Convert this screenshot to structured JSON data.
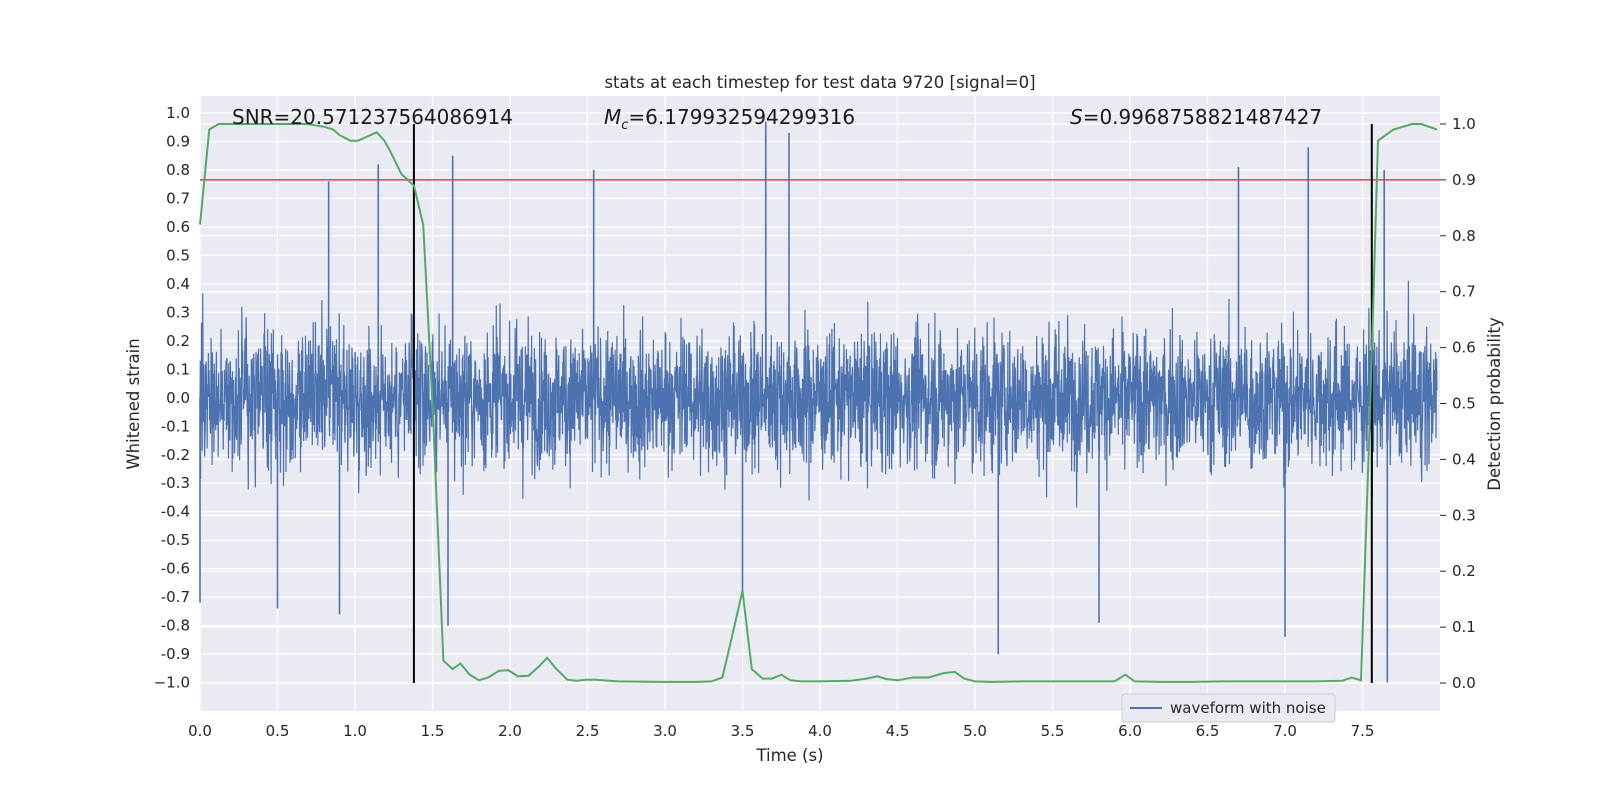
{
  "chart_data": {
    "type": "line",
    "title": "stats at each timestep for test data 9720 [signal=0]",
    "xlabel": "Time (s)",
    "ylabel_left": "Whitened strain",
    "ylabel_right": "Detection probability",
    "xlim": [
      0.0,
      8.0
    ],
    "ylim_left": [
      -1.1,
      1.06
    ],
    "ylim_right": [
      -0.05,
      1.05
    ],
    "x_ticks": [
      "0.0",
      "0.5",
      "1.0",
      "1.5",
      "2.0",
      "2.5",
      "3.0",
      "3.5",
      "4.0",
      "4.5",
      "5.0",
      "5.5",
      "6.0",
      "6.5",
      "7.0",
      "7.5"
    ],
    "y_left_ticks": [
      "1.0",
      "0.9",
      "0.8",
      "0.7",
      "0.6",
      "0.5",
      "0.4",
      "0.3",
      "0.2",
      "0.1",
      "0.0",
      "-0.1",
      "-0.2",
      "-0.3",
      "-0.4",
      "-0.5",
      "-0.6",
      "-0.7",
      "-0.8",
      "-0.9",
      "−1.0"
    ],
    "y_right_ticks": [
      "1.0",
      "0.9",
      "0.8",
      "0.7",
      "0.6",
      "0.5",
      "0.4",
      "0.3",
      "0.2",
      "0.1",
      "0.0"
    ],
    "grid": true,
    "legend_placement": "lower-right",
    "annotations": {
      "snr": "SNR=20.571237564086914",
      "mc_prefix": "M",
      "mc_sub": "c",
      "mc_value": "=6.179932594299316",
      "s_prefix": "S",
      "s_value": "=0.9968758821487427"
    },
    "series": [
      {
        "name": "waveform with noise",
        "axis": "left",
        "color": "#4c72b0",
        "description_envelope": {
          "typical_peak_upper": [
            0.35,
            0.65
          ],
          "typical_peak_lower": [
            -0.35,
            -0.65
          ],
          "notable_spikes": [
            {
              "x": 0.83,
              "y": 0.76
            },
            {
              "x": 1.15,
              "y": 0.82
            },
            {
              "x": 1.63,
              "y": 0.85
            },
            {
              "x": 2.54,
              "y": 0.8
            },
            {
              "x": 3.65,
              "y": 0.97
            },
            {
              "x": 3.8,
              "y": 0.93
            },
            {
              "x": 6.7,
              "y": 0.81
            },
            {
              "x": 7.15,
              "y": 0.88
            },
            {
              "x": 7.64,
              "y": 0.8
            },
            {
              "x": 0.0,
              "y": -0.72
            },
            {
              "x": 0.5,
              "y": -0.74
            },
            {
              "x": 0.9,
              "y": -0.76
            },
            {
              "x": 1.6,
              "y": -0.8
            },
            {
              "x": 3.5,
              "y": -0.7
            },
            {
              "x": 5.15,
              "y": -0.9
            },
            {
              "x": 5.8,
              "y": -0.79
            },
            {
              "x": 7.0,
              "y": -0.84
            },
            {
              "x": 7.66,
              "y": -1.0
            }
          ]
        }
      },
      {
        "name": "detection probability",
        "axis": "right",
        "color": "#55a868",
        "x": [
          0.0,
          0.06,
          0.12,
          0.2,
          0.3,
          0.4,
          0.5,
          0.6,
          0.7,
          0.8,
          0.86,
          0.9,
          0.97,
          1.02,
          1.06,
          1.1,
          1.14,
          1.19,
          1.23,
          1.3,
          1.38,
          1.44,
          1.5,
          1.57,
          1.63,
          1.68,
          1.74,
          1.8,
          1.86,
          1.93,
          1.99,
          2.05,
          2.12,
          2.18,
          2.24,
          2.3,
          2.37,
          2.43,
          2.49,
          2.55,
          2.7,
          3.0,
          3.2,
          3.3,
          3.37,
          3.43,
          3.5,
          3.56,
          3.63,
          3.69,
          3.75,
          3.81,
          3.88,
          4.0,
          4.2,
          4.3,
          4.37,
          4.43,
          4.5,
          4.6,
          4.7,
          4.8,
          4.87,
          4.93,
          5.0,
          5.1,
          5.3,
          5.6,
          5.9,
          5.97,
          6.03,
          6.2,
          6.4,
          6.6,
          6.8,
          7.0,
          7.2,
          7.37,
          7.43,
          7.49,
          7.55,
          7.6,
          7.65,
          7.7,
          7.76,
          7.82,
          7.88,
          7.93,
          7.98
        ],
        "values": [
          0.82,
          0.99,
          1.0,
          1.0,
          1.0,
          1.0,
          1.0,
          1.0,
          1.0,
          0.995,
          0.99,
          0.98,
          0.97,
          0.97,
          0.975,
          0.98,
          0.985,
          0.97,
          0.95,
          0.91,
          0.89,
          0.82,
          0.5,
          0.04,
          0.025,
          0.035,
          0.015,
          0.005,
          0.01,
          0.022,
          0.023,
          0.012,
          0.013,
          0.028,
          0.045,
          0.025,
          0.006,
          0.004,
          0.006,
          0.006,
          0.003,
          0.002,
          0.002,
          0.003,
          0.01,
          0.08,
          0.165,
          0.025,
          0.008,
          0.008,
          0.015,
          0.005,
          0.003,
          0.003,
          0.004,
          0.008,
          0.012,
          0.007,
          0.005,
          0.01,
          0.01,
          0.018,
          0.02,
          0.008,
          0.003,
          0.002,
          0.003,
          0.003,
          0.003,
          0.015,
          0.003,
          0.002,
          0.002,
          0.003,
          0.003,
          0.003,
          0.003,
          0.004,
          0.01,
          0.005,
          0.5,
          0.97,
          0.98,
          0.99,
          0.995,
          1.0,
          1.0,
          0.995,
          0.99
        ]
      }
    ],
    "threshold_line": {
      "axis": "right",
      "value": 0.9,
      "color": "#c44e52"
    },
    "vertical_lines": [
      {
        "x": 1.38,
        "color": "#000000"
      },
      {
        "x": 7.56,
        "color": "#000000"
      }
    ]
  }
}
